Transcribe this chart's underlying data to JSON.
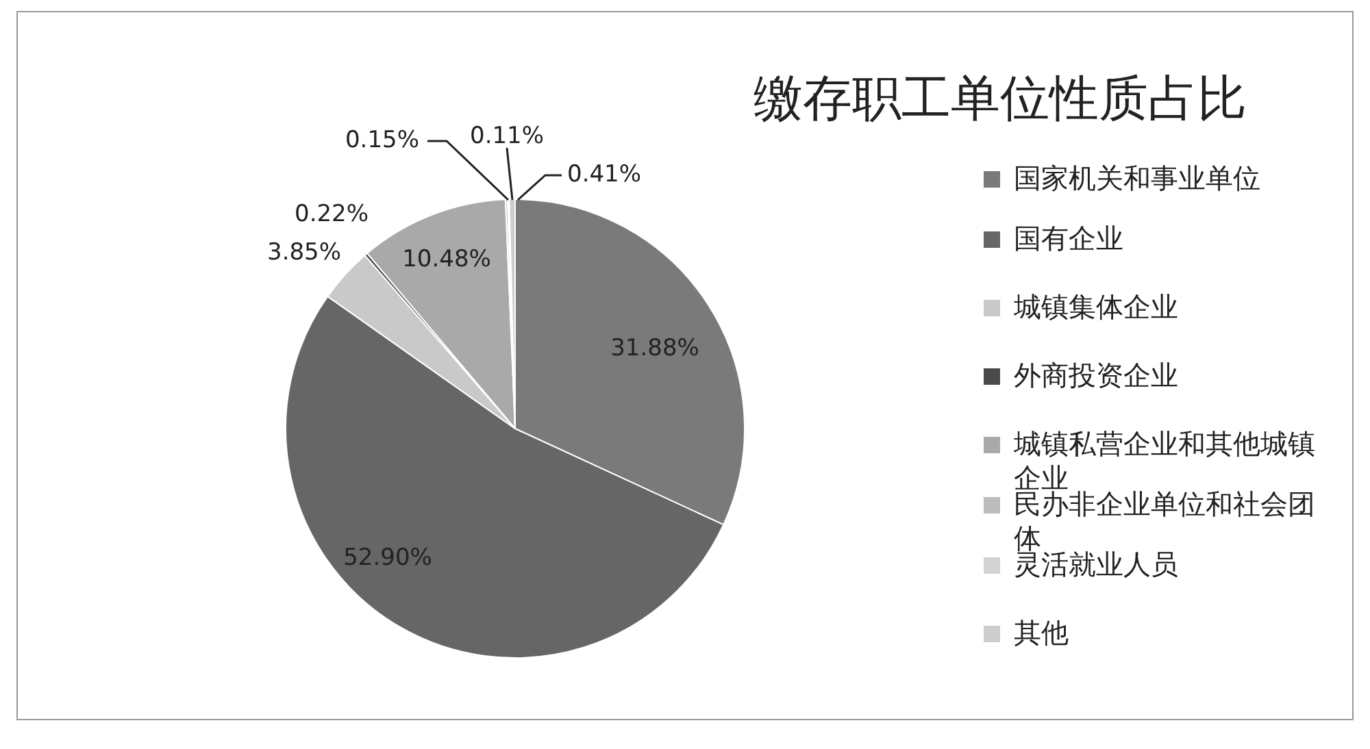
{
  "chart_data": {
    "type": "pie",
    "title": "缴存职工单位性质占比",
    "categories": [
      "国家机关和事业单位",
      "国有企业",
      "城镇集体企业",
      "外商投资企业",
      "城镇私营企业和其他城镇企业",
      "民办非企业单位和社会团体",
      "灵活就业人员",
      "其他"
    ],
    "values": [
      31.88,
      52.9,
      3.85,
      0.22,
      10.48,
      0.15,
      0.11,
      0.41
    ],
    "value_labels": [
      "31.88%",
      "52.90%",
      "3.85%",
      "0.22%",
      "10.48%",
      "0.15%",
      "0.11%",
      "0.41%"
    ],
    "colors": [
      "#7a7a7a",
      "#666666",
      "#c9c9c9",
      "#4a4a4a",
      "#a9a9a9",
      "#bcbcbc",
      "#d2d2d2",
      "#cdcdcd"
    ],
    "legend": "right"
  }
}
